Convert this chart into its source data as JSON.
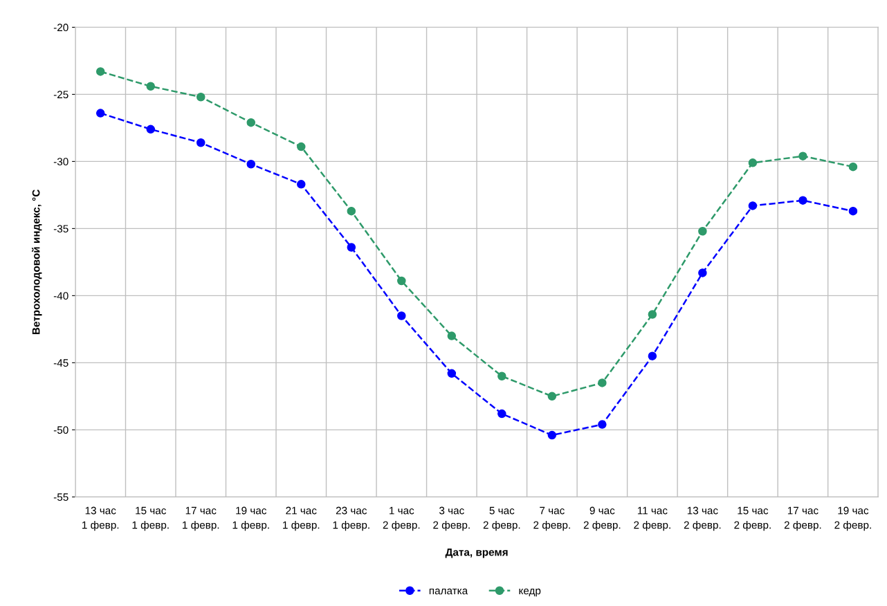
{
  "chart_data": {
    "type": "line",
    "xlabel": "Дата, время",
    "ylabel": "Ветрохолодовой индекс, °С",
    "categories": [
      "13 час\n1 февр.",
      "15 час\n1 февр.",
      "17 час\n1 февр.",
      "19 час\n1 февр.",
      "21 час\n1 февр.",
      "23 час\n1 февр.",
      "1 час\n2 февр.",
      "3 час\n2 февр.",
      "5 час\n2 февр.",
      "7 час\n2 февр.",
      "9 час\n2 февр.",
      "11 час\n2 февр.",
      "13 час\n2 февр.",
      "15 час\n2 февр.",
      "17 час\n2 февр.",
      "19 час\n2 февр."
    ],
    "series": [
      {
        "name": "палатка",
        "color": "#0000ff",
        "values": [
          -26.4,
          -27.6,
          -28.6,
          -30.2,
          -31.7,
          -36.4,
          -41.5,
          -45.8,
          -48.8,
          -50.4,
          -49.6,
          -44.5,
          -38.3,
          -33.3,
          -32.9,
          -33.7
        ]
      },
      {
        "name": "кедр",
        "color": "#2e9a6a",
        "values": [
          -23.3,
          -24.4,
          -25.2,
          -27.1,
          -28.9,
          -33.7,
          -38.9,
          -43.0,
          -46.0,
          -47.5,
          -46.5,
          -41.4,
          -35.2,
          -30.1,
          -29.6,
          -30.4
        ]
      }
    ],
    "ylim": [
      -55,
      -20
    ],
    "yticks": [
      -55,
      -50,
      -45,
      -40,
      -35,
      -30,
      -25,
      -20
    ],
    "grid": true,
    "legend": "bottom",
    "marker": "circle",
    "line_style": "dashed"
  }
}
